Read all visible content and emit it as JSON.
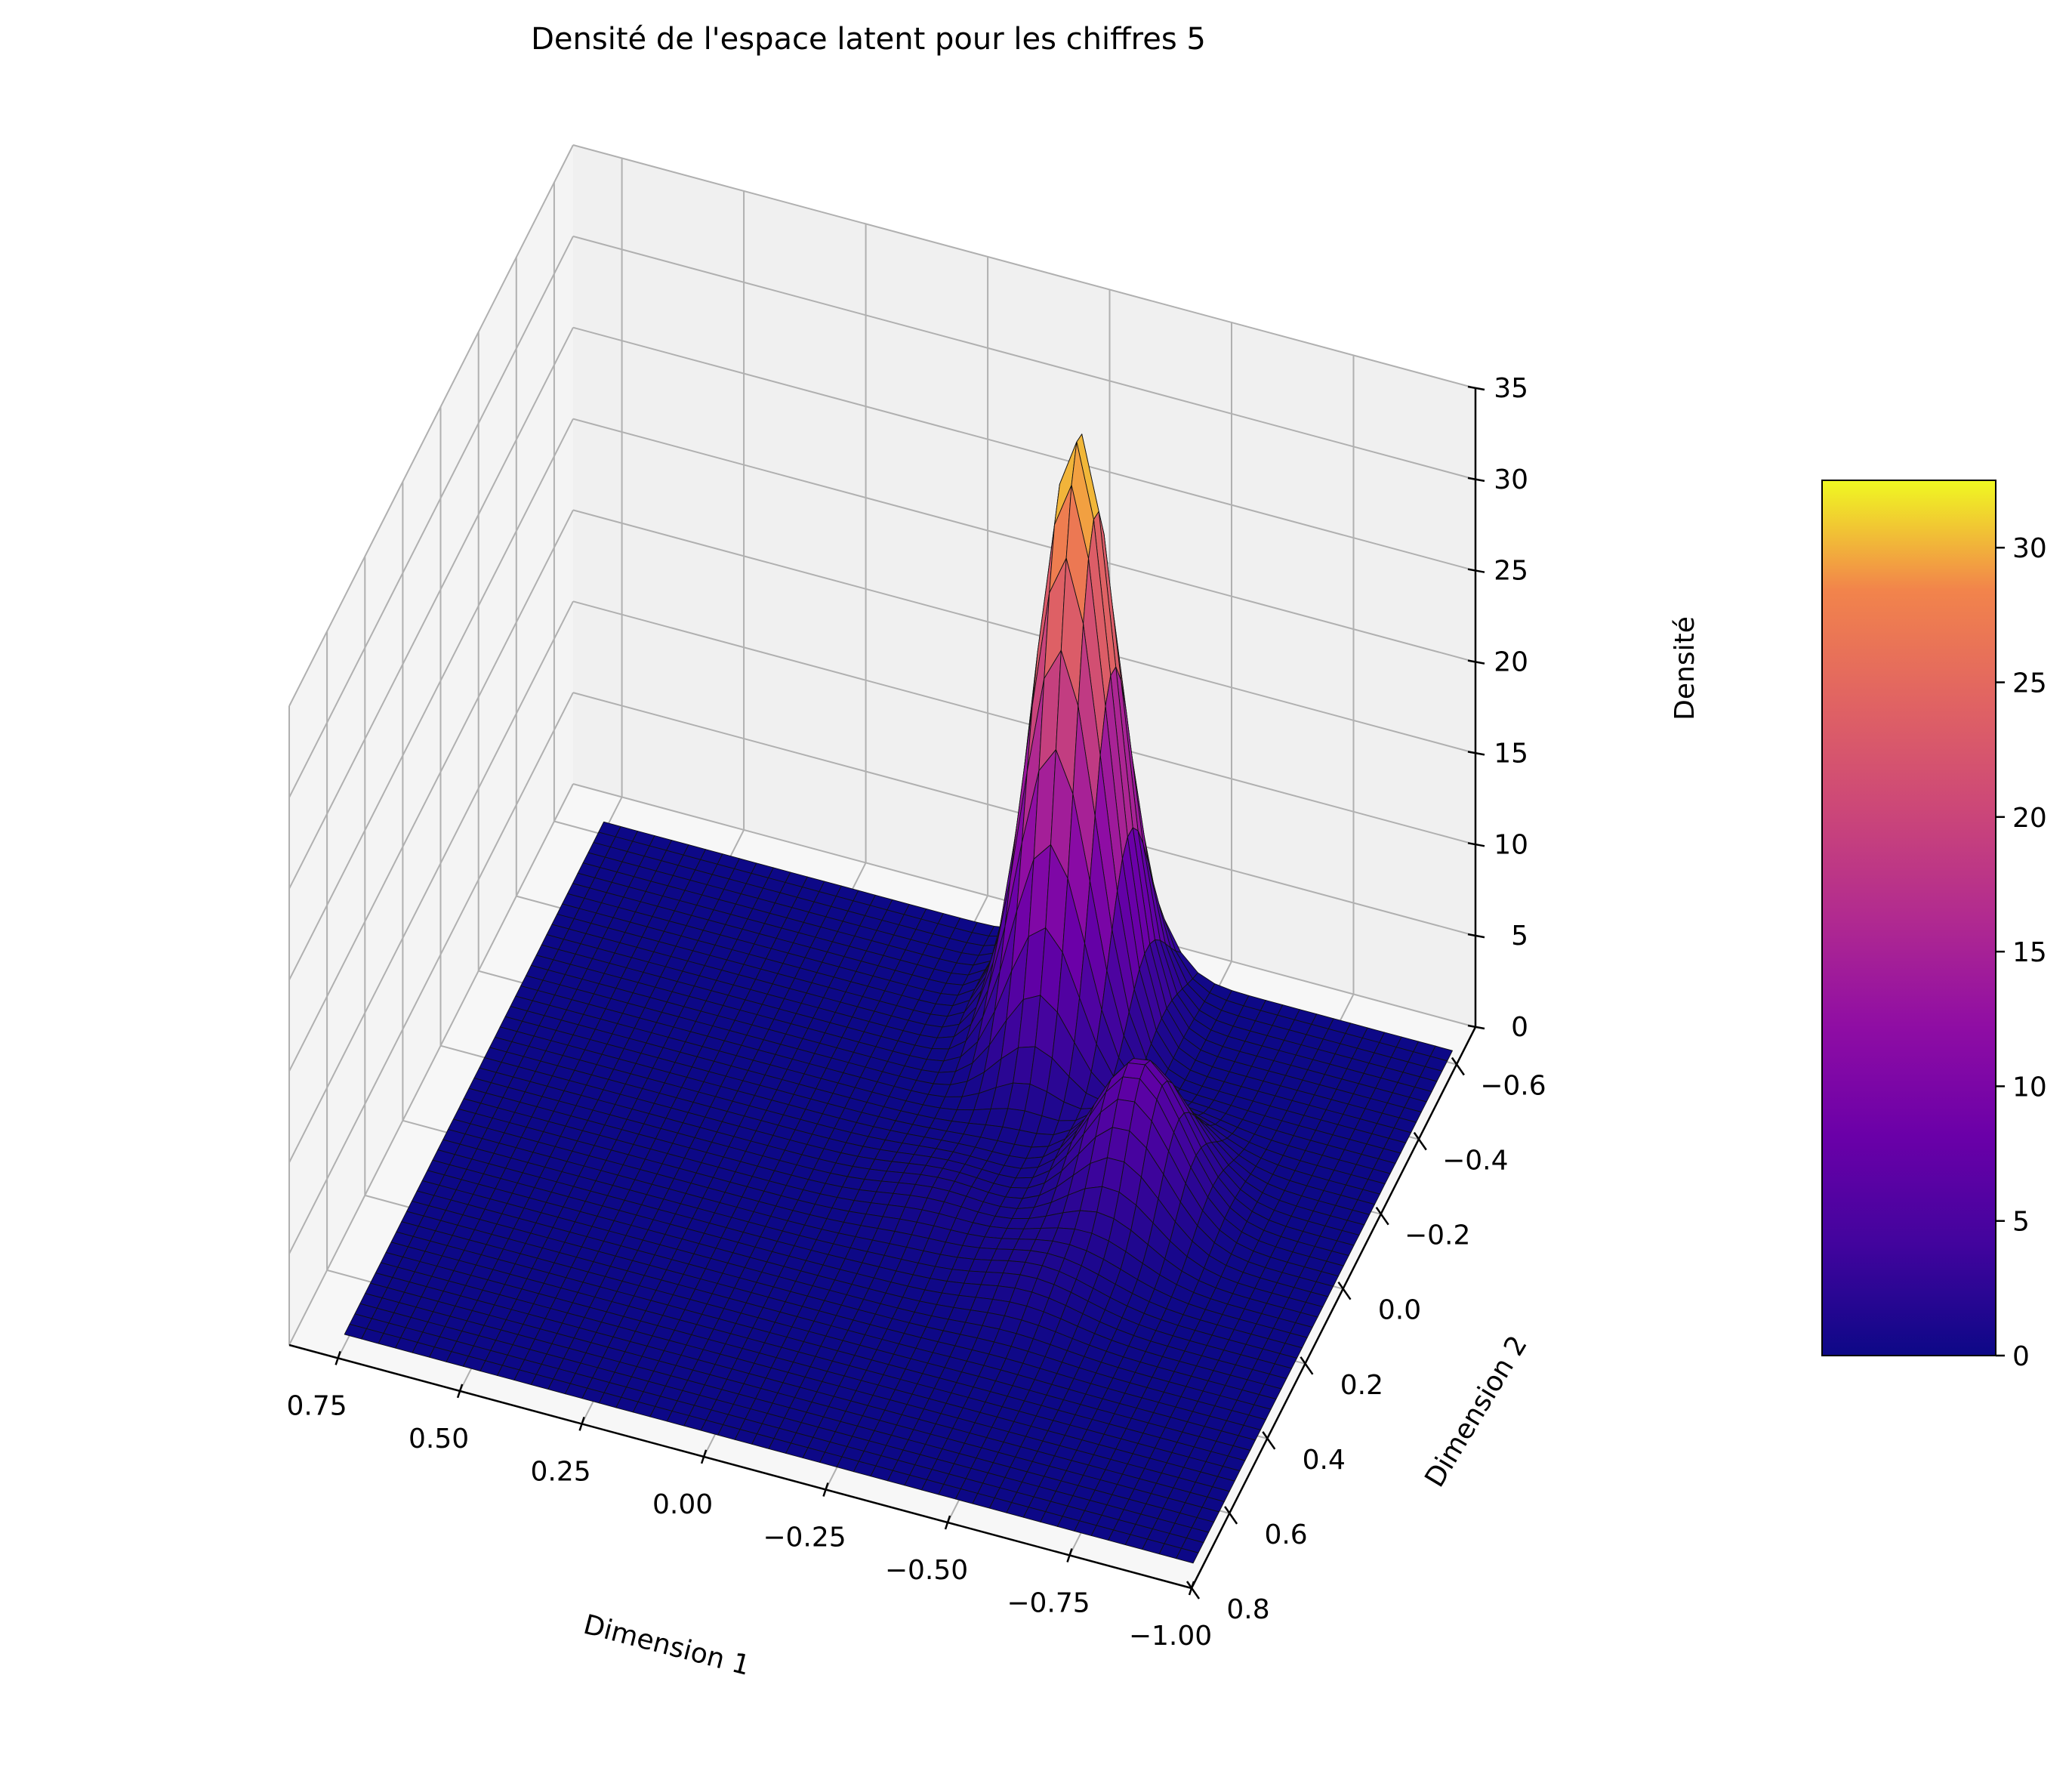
{
  "chart_data": {
    "type": "surface3d",
    "title": "Densité de l'espace latent pour les chiffres 5",
    "xlabel": "Dimension 1",
    "ylabel": "Dimension 2",
    "zlabel": "Densité",
    "x_ticks": [
      "0.75",
      "0.50",
      "0.25",
      "0.00",
      "−0.25",
      "−0.50",
      "−0.75",
      "−1.00"
    ],
    "y_ticks": [
      "−0.6",
      "−0.4",
      "−0.2",
      "0.0",
      "0.2",
      "0.4",
      "0.6",
      "0.8"
    ],
    "z_ticks": [
      "0",
      "5",
      "10",
      "15",
      "20",
      "25",
      "30",
      "35"
    ],
    "x_range": [
      -1.0,
      0.85
    ],
    "y_range": [
      -0.7,
      0.8
    ],
    "zlim": [
      0,
      35
    ],
    "grid": true,
    "colormap": "plasma",
    "colorbar": {
      "ticks": [
        "0",
        "5",
        "10",
        "15",
        "20",
        "25",
        "30"
      ],
      "range": [
        0,
        32.5
      ]
    },
    "peaks": [
      {
        "x": -0.28,
        "y": -0.45,
        "density": 32.5,
        "sigma_x": 0.075,
        "sigma_y": 0.11
      },
      {
        "x": -0.55,
        "y": -0.08,
        "density": 7.5,
        "sigma_x": 0.09,
        "sigma_y": 0.1
      },
      {
        "x": -0.45,
        "y": 0.18,
        "density": 1.2,
        "sigma_x": 0.1,
        "sigma_y": 0.1
      },
      {
        "x": -0.2,
        "y": 0.05,
        "density": 0.8,
        "sigma_x": 0.1,
        "sigma_y": 0.1
      }
    ]
  }
}
